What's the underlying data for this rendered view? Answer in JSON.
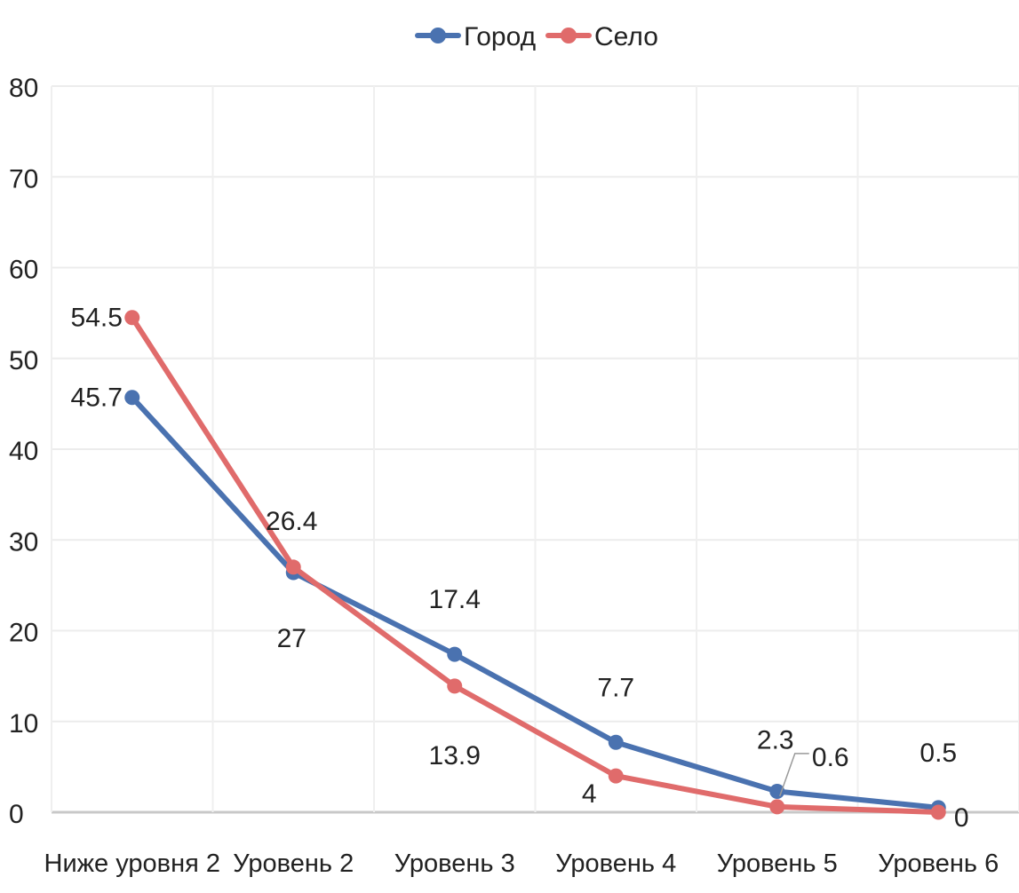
{
  "chart_data": {
    "type": "line",
    "title": "",
    "xlabel": "",
    "ylabel": "",
    "categories": [
      "Ниже уровня 2",
      "Уровень 2",
      "Уровень 3",
      "Уровень 4",
      "Уровень 5",
      "Уровень 6"
    ],
    "ylim": [
      0,
      80
    ],
    "yticks": [
      0,
      10,
      20,
      30,
      40,
      50,
      60,
      70,
      80
    ],
    "grid": true,
    "legend": "top-center",
    "series": [
      {
        "name": "Город",
        "color": "#4a72b0",
        "values": [
          45.7,
          26.4,
          17.4,
          7.7,
          2.3,
          0.5
        ]
      },
      {
        "name": "Село",
        "color": "#e06b6b",
        "values": [
          54.5,
          27,
          13.9,
          4,
          0.6,
          0
        ]
      }
    ]
  }
}
